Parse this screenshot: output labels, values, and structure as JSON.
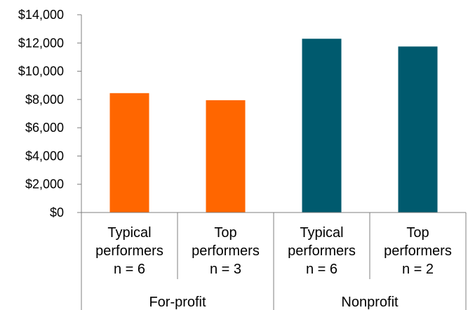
{
  "chart_data": {
    "type": "bar",
    "title": "",
    "xlabel": "",
    "ylabel": "",
    "ylim": [
      0,
      14000
    ],
    "yticks": [
      "$0",
      "$2,000",
      "$4,000",
      "$6,000",
      "$8,000",
      "$10,000",
      "$12,000",
      "$14,000"
    ],
    "grid": false,
    "groups": [
      "For-profit",
      "Nonprofit"
    ],
    "categories": [
      [
        "Typical",
        "performers",
        "n = 6"
      ],
      [
        "Top",
        "performers",
        "n = 3"
      ],
      [
        "Typical",
        "performers",
        "n = 6"
      ],
      [
        "Top",
        "performers",
        "n = 2"
      ]
    ],
    "values": [
      8450,
      7950,
      12300,
      11750
    ],
    "colors": [
      "#FF6600",
      "#FF6600",
      "#005A6E",
      "#005A6E"
    ]
  }
}
